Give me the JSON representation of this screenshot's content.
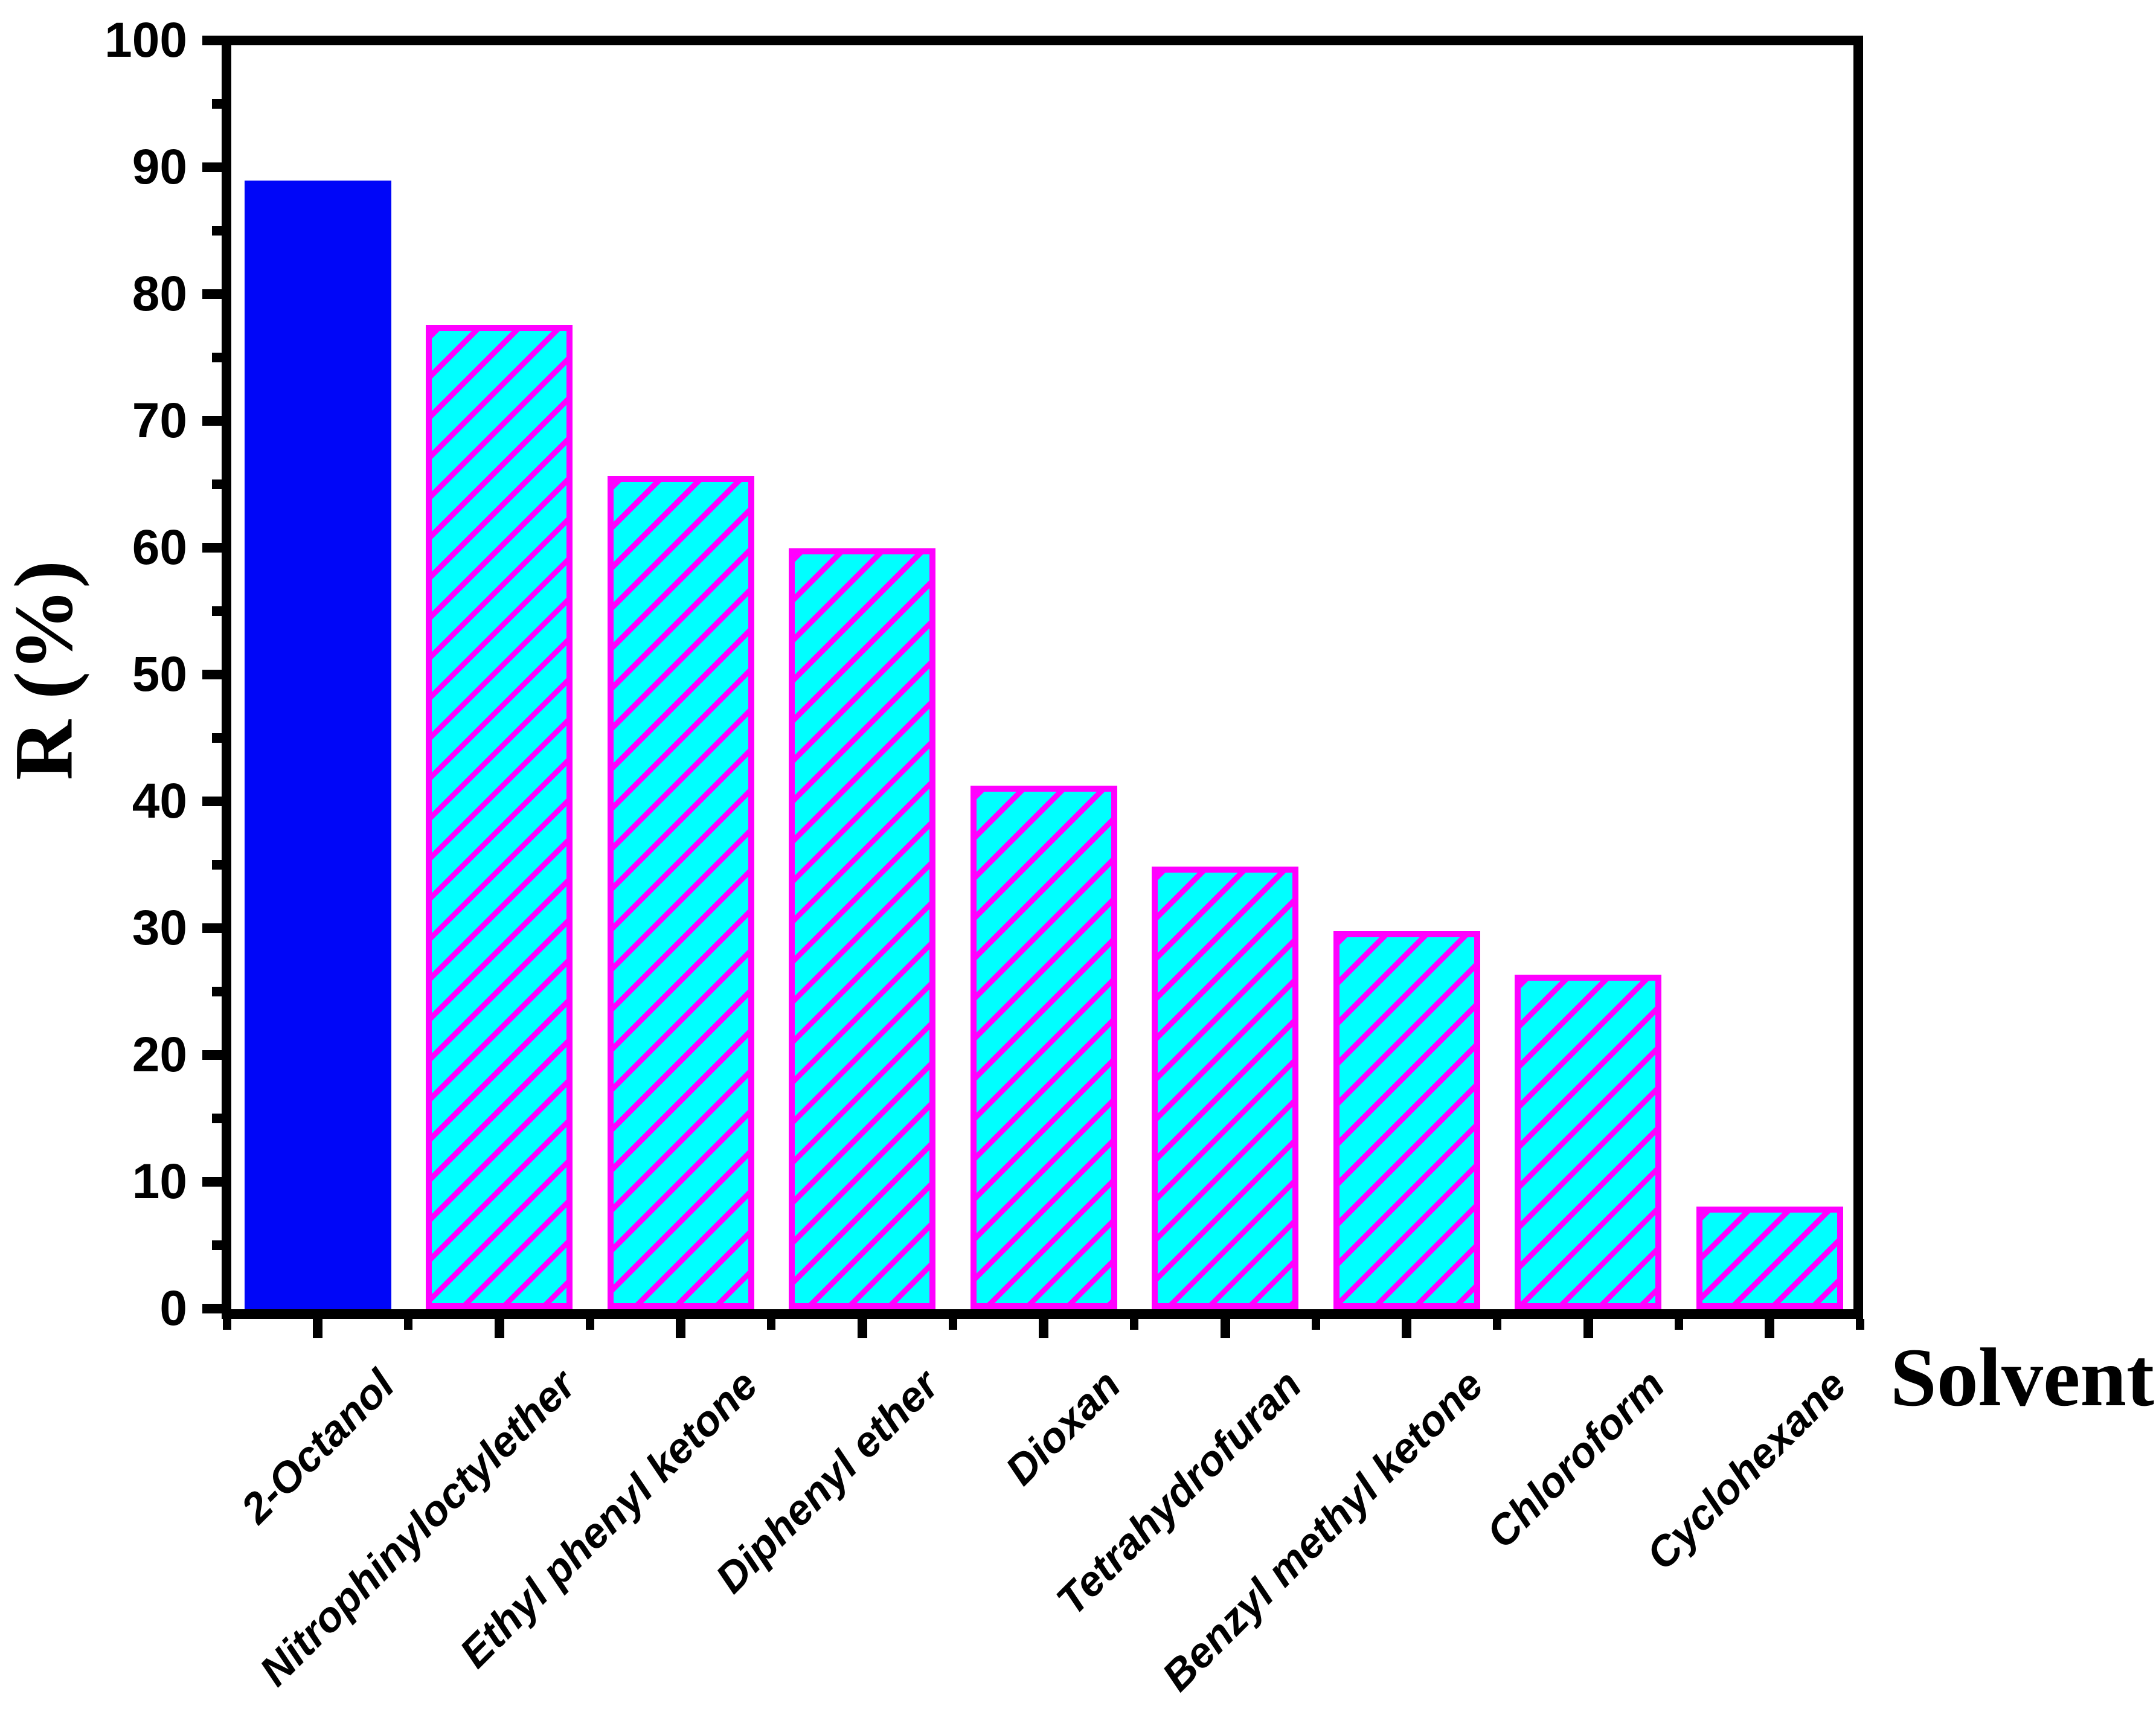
{
  "chart_data": {
    "type": "bar",
    "title": "",
    "xlabel": "Solvent",
    "ylabel": "R (%)",
    "ylim": [
      0,
      100
    ],
    "y_major_tick_step": 10,
    "y_minor_tick_step": 5,
    "y_tick_labels": [
      "0",
      "10",
      "20",
      "30",
      "40",
      "50",
      "60",
      "70",
      "80",
      "90",
      "100"
    ],
    "grid": false,
    "legend": null,
    "categories": [
      "2-Octanol",
      "Nitrophinyloctylether",
      "Ethyl phenyl ketone",
      "Diphenyl ether",
      "Dioxan",
      "Tetrahydrofuran",
      "Benzyl methyl ketone",
      "Chloroform",
      "Cyclohexane"
    ],
    "values": [
      89.0,
      77.6,
      65.7,
      60.0,
      41.3,
      34.9,
      29.8,
      26.4,
      8.1
    ],
    "highlight_index": 0,
    "colors": {
      "highlight_bar_fill": "#0006f8",
      "hatched_bar_fill": "#00ffff",
      "hatch_line": "#ff00ff",
      "hatched_bar_edge": "#ff00ff",
      "axis": "#000000",
      "text": "#000000",
      "background": "#ffffff"
    }
  }
}
